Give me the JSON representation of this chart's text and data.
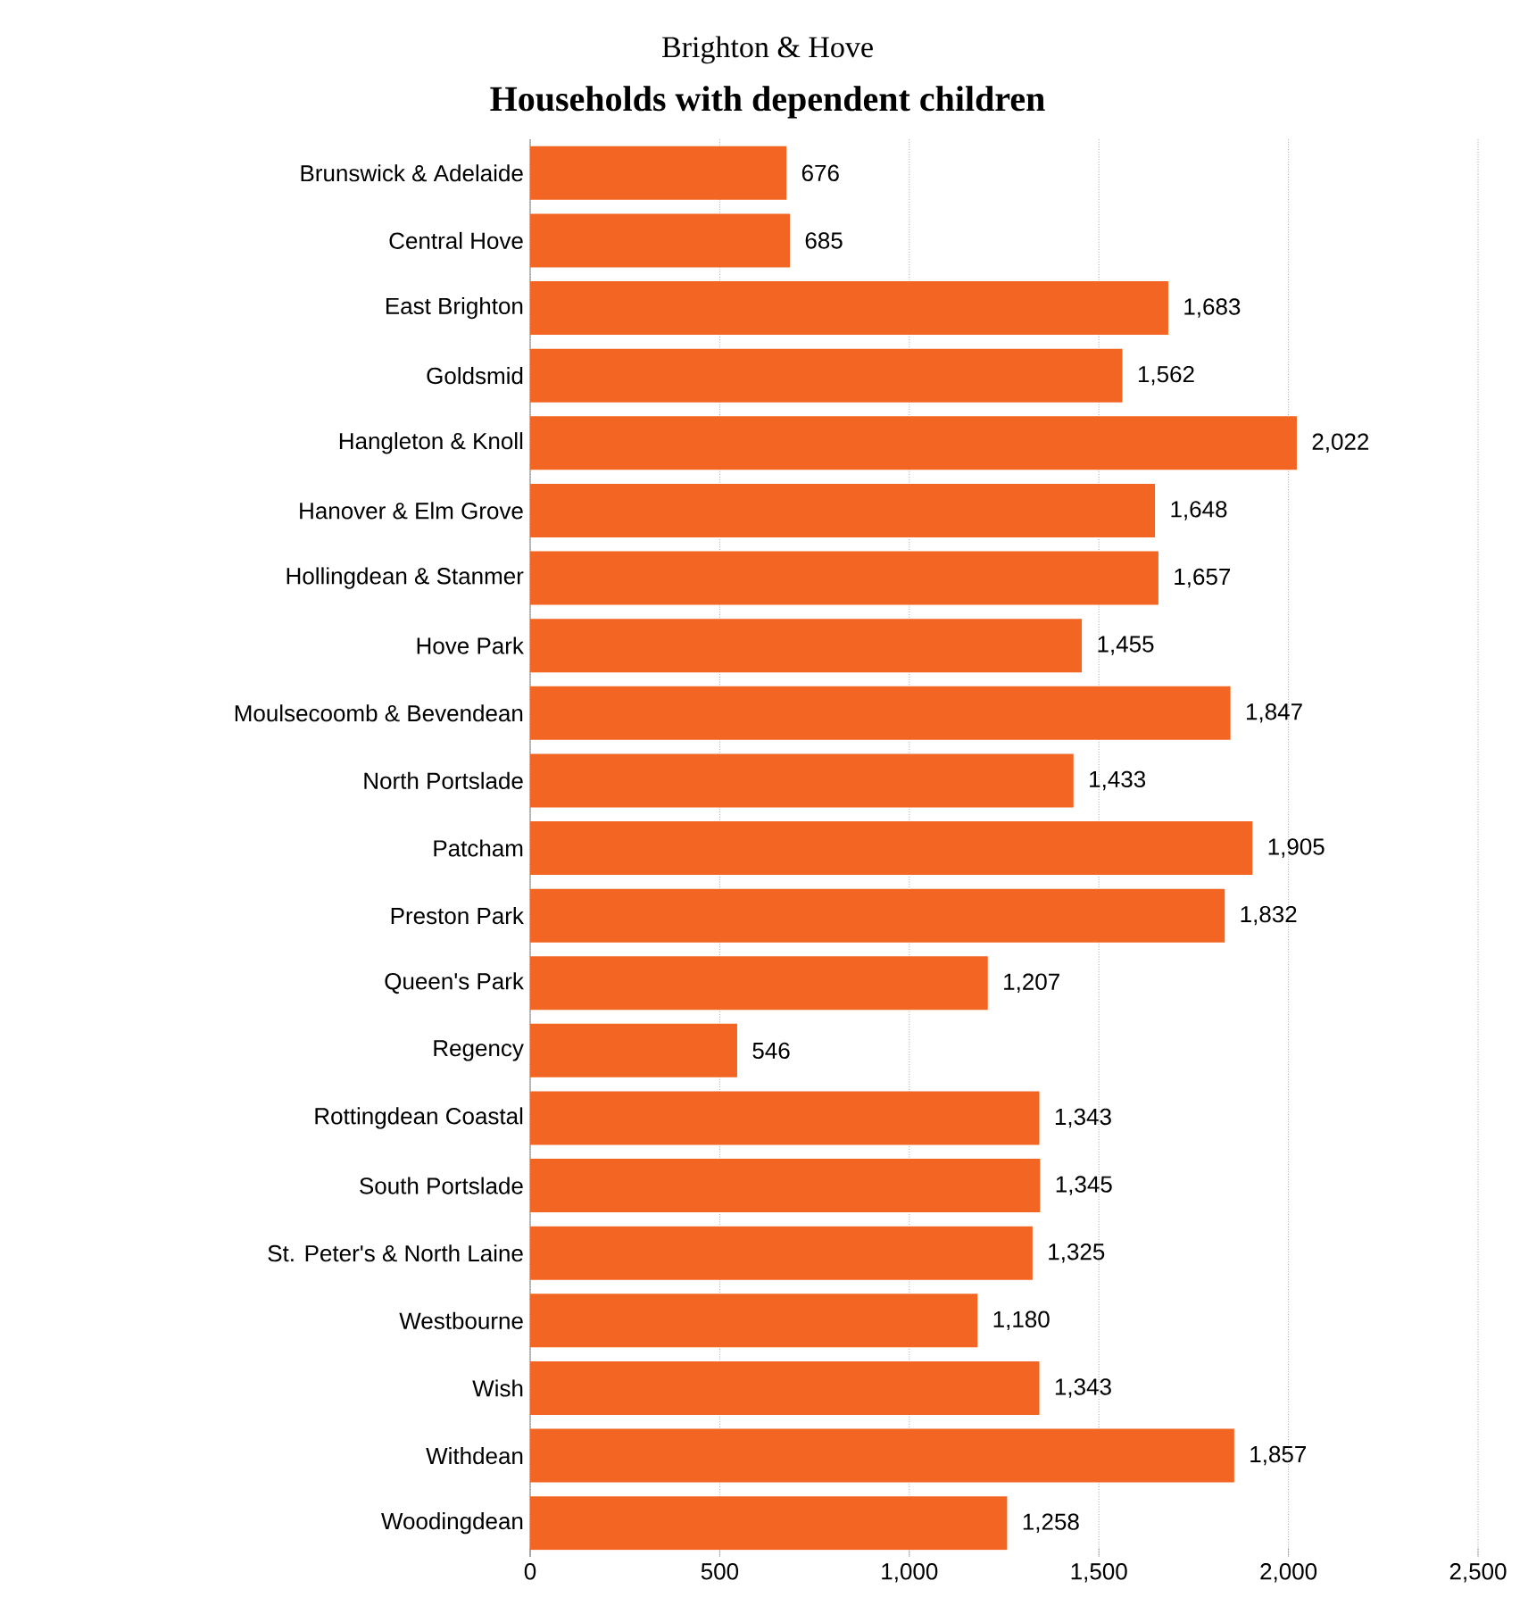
{
  "chart_data": {
    "type": "bar",
    "orientation": "horizontal",
    "title": "Brighton & Hove",
    "subtitle": "Households with dependent children",
    "categories": [
      "Brunswick & Adelaide",
      "Central Hove",
      "East Brighton",
      "Goldsmid",
      "Hangleton & Knoll",
      "Hanover & Elm Grove",
      "Hollingdean & Stanmer",
      "Hove Park",
      "Moulsecoomb & Bevendean",
      "North Portslade",
      "Patcham",
      "Preston Park",
      "Queen's Park",
      "Regency",
      "Rottingdean Coastal",
      "South Portslade",
      "St. Peter's & North Laine",
      "Westbourne",
      "Wish",
      "Withdean",
      "Woodingdean"
    ],
    "values": [
      676,
      685,
      1683,
      1562,
      2022,
      1648,
      1657,
      1455,
      1847,
      1433,
      1905,
      1832,
      1207,
      546,
      1343,
      1345,
      1325,
      1180,
      1343,
      1857,
      1258
    ],
    "value_labels": [
      "676",
      "685",
      "1,683",
      "1,562",
      "2,022",
      "1,648",
      "1,657",
      "1,455",
      "1,847",
      "1,433",
      "1,905",
      "1,832",
      "1,207",
      "546",
      "1,343",
      "1,345",
      "1,325",
      "1,180",
      "1,343",
      "1,857",
      "1,258"
    ],
    "color": "#f26522",
    "xlim": [
      0,
      2500
    ],
    "xticks": [
      0,
      500,
      {
        "value": 1000,
        "label": "1,000"
      },
      {
        "value": 1500,
        "label": "1,500"
      },
      {
        "value": 2000,
        "label": "2,000"
      },
      {
        "value": 2500,
        "label": "2,500"
      }
    ],
    "grid": "x"
  }
}
